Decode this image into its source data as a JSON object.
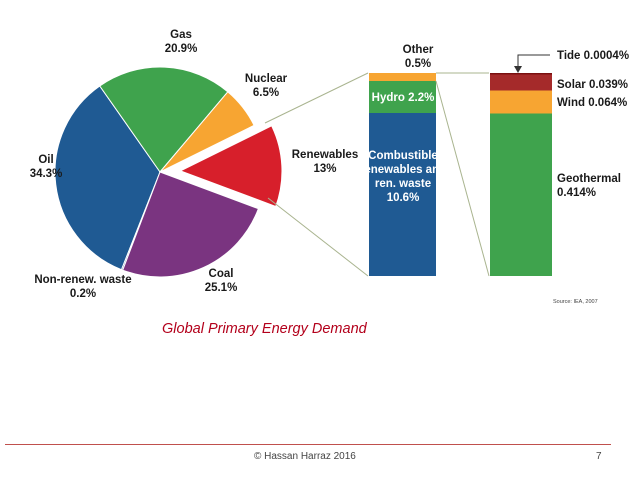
{
  "chart_data": [
    {
      "type": "pie",
      "title": "",
      "slices": [
        {
          "name": "Gas",
          "value_label": "20.9%",
          "value": 20.9,
          "color": "#3fa34d"
        },
        {
          "name": "Nuclear",
          "value_label": "6.5%",
          "value": 6.5,
          "color": "#f7a532"
        },
        {
          "name": "Renewables",
          "value_label": "13%",
          "value": 13,
          "color": "#d71f2b",
          "exploded": true
        },
        {
          "name": "Coal",
          "value_label": "25.1%",
          "value": 25.1,
          "color": "#7a3480"
        },
        {
          "name": "Non-renew. waste",
          "value_label": "0.2%",
          "value": 0.2,
          "color": "#1f4f8c"
        },
        {
          "name": "Oil",
          "value_label": "34.3%",
          "value": 34.3,
          "color": "#1f5a93"
        }
      ]
    },
    {
      "type": "bar",
      "stacked": true,
      "description_of": "Renewables breakdown",
      "segments": [
        {
          "name": "Other",
          "value_label": "0.5%",
          "value": 0.5,
          "color": "#f7a532"
        },
        {
          "name": "Hydro",
          "value_label": "2.2%",
          "value": 2.2,
          "color": "#3fa34d"
        },
        {
          "name": "Combustible renewables and ren. waste",
          "lines": [
            "Combustible",
            "renewables and",
            "ren. waste"
          ],
          "value_label": "10.6%",
          "value": 10.6,
          "color": "#1f5a93"
        }
      ]
    },
    {
      "type": "bar",
      "stacked": true,
      "description_of": "Other breakdown",
      "segments": [
        {
          "name": "Tide",
          "value_label": "0.0004%",
          "value": 0.0004,
          "color": "#8b1a1a"
        },
        {
          "name": "Solar",
          "value_label": "0.039%",
          "value": 0.039,
          "color": "#a52a2a"
        },
        {
          "name": "Wind",
          "value_label": "0.064%",
          "value": 0.064,
          "color": "#f7a532"
        },
        {
          "name": "Geothermal",
          "value_label": "0.414%",
          "value": 0.414,
          "color": "#3fa34d"
        }
      ]
    }
  ],
  "source_text": "Source: IEA, 2007",
  "caption": "Global Primary Energy Demand",
  "footer": {
    "text": "©  Hassan Harraz  2016",
    "page": "7"
  }
}
